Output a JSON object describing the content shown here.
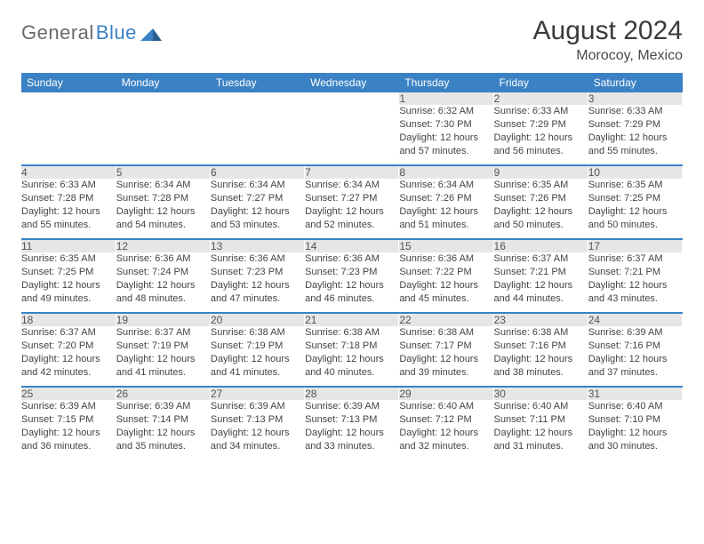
{
  "brand": {
    "part1": "General",
    "part2": "Blue"
  },
  "title": "August 2024",
  "location": "Morocoy, Mexico",
  "colors": {
    "header_bg": "#3b82c4",
    "header_text": "#ffffff",
    "daynum_bg": "#e6e6e6",
    "week_divider": "#3b82c4",
    "body_text": "#444444"
  },
  "columns": [
    "Sunday",
    "Monday",
    "Tuesday",
    "Wednesday",
    "Thursday",
    "Friday",
    "Saturday"
  ],
  "weeks": [
    {
      "nums": [
        "",
        "",
        "",
        "",
        "1",
        "2",
        "3"
      ],
      "cells": [
        "",
        "",
        "",
        "",
        "Sunrise: 6:32 AM\nSunset: 7:30 PM\nDaylight: 12 hours and 57 minutes.",
        "Sunrise: 6:33 AM\nSunset: 7:29 PM\nDaylight: 12 hours and 56 minutes.",
        "Sunrise: 6:33 AM\nSunset: 7:29 PM\nDaylight: 12 hours and 55 minutes."
      ]
    },
    {
      "nums": [
        "4",
        "5",
        "6",
        "7",
        "8",
        "9",
        "10"
      ],
      "cells": [
        "Sunrise: 6:33 AM\nSunset: 7:28 PM\nDaylight: 12 hours and 55 minutes.",
        "Sunrise: 6:34 AM\nSunset: 7:28 PM\nDaylight: 12 hours and 54 minutes.",
        "Sunrise: 6:34 AM\nSunset: 7:27 PM\nDaylight: 12 hours and 53 minutes.",
        "Sunrise: 6:34 AM\nSunset: 7:27 PM\nDaylight: 12 hours and 52 minutes.",
        "Sunrise: 6:34 AM\nSunset: 7:26 PM\nDaylight: 12 hours and 51 minutes.",
        "Sunrise: 6:35 AM\nSunset: 7:26 PM\nDaylight: 12 hours and 50 minutes.",
        "Sunrise: 6:35 AM\nSunset: 7:25 PM\nDaylight: 12 hours and 50 minutes."
      ]
    },
    {
      "nums": [
        "11",
        "12",
        "13",
        "14",
        "15",
        "16",
        "17"
      ],
      "cells": [
        "Sunrise: 6:35 AM\nSunset: 7:25 PM\nDaylight: 12 hours and 49 minutes.",
        "Sunrise: 6:36 AM\nSunset: 7:24 PM\nDaylight: 12 hours and 48 minutes.",
        "Sunrise: 6:36 AM\nSunset: 7:23 PM\nDaylight: 12 hours and 47 minutes.",
        "Sunrise: 6:36 AM\nSunset: 7:23 PM\nDaylight: 12 hours and 46 minutes.",
        "Sunrise: 6:36 AM\nSunset: 7:22 PM\nDaylight: 12 hours and 45 minutes.",
        "Sunrise: 6:37 AM\nSunset: 7:21 PM\nDaylight: 12 hours and 44 minutes.",
        "Sunrise: 6:37 AM\nSunset: 7:21 PM\nDaylight: 12 hours and 43 minutes."
      ]
    },
    {
      "nums": [
        "18",
        "19",
        "20",
        "21",
        "22",
        "23",
        "24"
      ],
      "cells": [
        "Sunrise: 6:37 AM\nSunset: 7:20 PM\nDaylight: 12 hours and 42 minutes.",
        "Sunrise: 6:37 AM\nSunset: 7:19 PM\nDaylight: 12 hours and 41 minutes.",
        "Sunrise: 6:38 AM\nSunset: 7:19 PM\nDaylight: 12 hours and 41 minutes.",
        "Sunrise: 6:38 AM\nSunset: 7:18 PM\nDaylight: 12 hours and 40 minutes.",
        "Sunrise: 6:38 AM\nSunset: 7:17 PM\nDaylight: 12 hours and 39 minutes.",
        "Sunrise: 6:38 AM\nSunset: 7:16 PM\nDaylight: 12 hours and 38 minutes.",
        "Sunrise: 6:39 AM\nSunset: 7:16 PM\nDaylight: 12 hours and 37 minutes."
      ]
    },
    {
      "nums": [
        "25",
        "26",
        "27",
        "28",
        "29",
        "30",
        "31"
      ],
      "cells": [
        "Sunrise: 6:39 AM\nSunset: 7:15 PM\nDaylight: 12 hours and 36 minutes.",
        "Sunrise: 6:39 AM\nSunset: 7:14 PM\nDaylight: 12 hours and 35 minutes.",
        "Sunrise: 6:39 AM\nSunset: 7:13 PM\nDaylight: 12 hours and 34 minutes.",
        "Sunrise: 6:39 AM\nSunset: 7:13 PM\nDaylight: 12 hours and 33 minutes.",
        "Sunrise: 6:40 AM\nSunset: 7:12 PM\nDaylight: 12 hours and 32 minutes.",
        "Sunrise: 6:40 AM\nSunset: 7:11 PM\nDaylight: 12 hours and 31 minutes.",
        "Sunrise: 6:40 AM\nSunset: 7:10 PM\nDaylight: 12 hours and 30 minutes."
      ]
    }
  ]
}
